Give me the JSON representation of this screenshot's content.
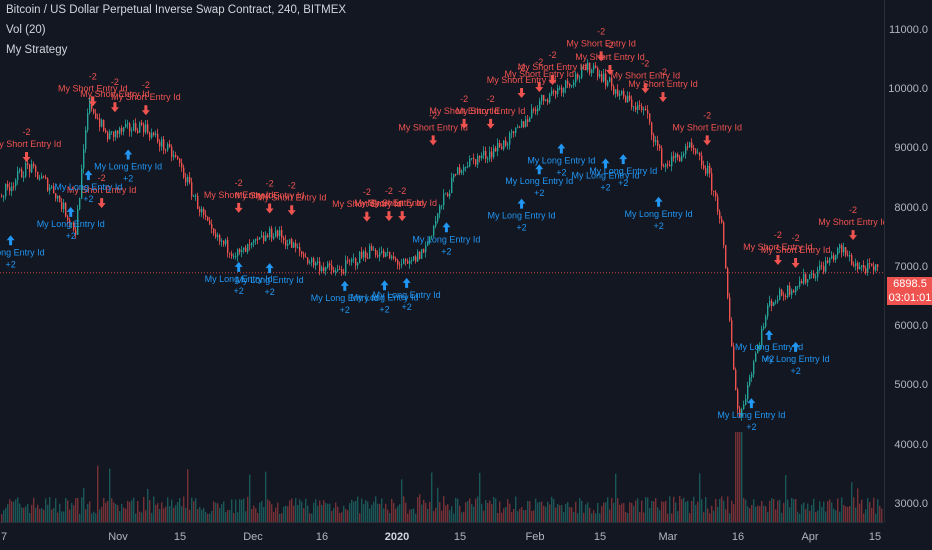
{
  "legend": {
    "title": "Bitcoin / US Dollar Perpetual Inverse Swap Contract, 240, BITMEX",
    "volume": "Vol (20)",
    "strategy": "My Strategy"
  },
  "price_axis": {
    "labels": [
      "11000.0",
      "10000.0",
      "9000.0",
      "8000.0",
      "7000.0",
      "6000.0",
      "5000.0",
      "4000.0",
      "3000.0"
    ],
    "current_price": "6898.5",
    "countdown": "03:01:01"
  },
  "time_axis": {
    "labels": [
      "7",
      "Nov",
      "15",
      "Dec",
      "16",
      "2020",
      "15",
      "Feb",
      "15",
      "Mar",
      "16",
      "Apr",
      "15"
    ]
  },
  "colors": {
    "up": "#26a69a",
    "down": "#ef5350",
    "long": "#2196f3",
    "background": "#131722"
  },
  "signals": {
    "short_label": "My Short Entry Id",
    "short_qty": "-2",
    "long_label": "My Long Entry Id",
    "long_qty": "+2",
    "short": [
      {
        "t": 0.03,
        "p": 8720
      },
      {
        "t": 0.115,
        "p": 7940
      },
      {
        "t": 0.105,
        "p": 9660
      },
      {
        "t": 0.13,
        "p": 9560
      },
      {
        "t": 0.165,
        "p": 9510
      },
      {
        "t": 0.27,
        "p": 7860
      },
      {
        "t": 0.305,
        "p": 7850
      },
      {
        "t": 0.33,
        "p": 7820
      },
      {
        "t": 0.415,
        "p": 7710
      },
      {
        "t": 0.44,
        "p": 7720
      },
      {
        "t": 0.455,
        "p": 7720
      },
      {
        "t": 0.49,
        "p": 9000
      },
      {
        "t": 0.525,
        "p": 9280
      },
      {
        "t": 0.555,
        "p": 9280
      },
      {
        "t": 0.59,
        "p": 9800
      },
      {
        "t": 0.61,
        "p": 9900
      },
      {
        "t": 0.625,
        "p": 10020
      },
      {
        "t": 0.68,
        "p": 10420
      },
      {
        "t": 0.69,
        "p": 10190
      },
      {
        "t": 0.73,
        "p": 9880
      },
      {
        "t": 0.75,
        "p": 9730
      },
      {
        "t": 0.8,
        "p": 9000
      },
      {
        "t": 0.88,
        "p": 6980
      },
      {
        "t": 0.9,
        "p": 6930
      },
      {
        "t": 0.965,
        "p": 7400
      }
    ],
    "long": [
      {
        "t": 0.012,
        "p": 7600
      },
      {
        "t": 0.08,
        "p": 8080
      },
      {
        "t": 0.1,
        "p": 8700
      },
      {
        "t": 0.145,
        "p": 9050
      },
      {
        "t": 0.27,
        "p": 7150
      },
      {
        "t": 0.305,
        "p": 7130
      },
      {
        "t": 0.39,
        "p": 6830
      },
      {
        "t": 0.435,
        "p": 6840
      },
      {
        "t": 0.46,
        "p": 6880
      },
      {
        "t": 0.505,
        "p": 7820
      },
      {
        "t": 0.59,
        "p": 8220
      },
      {
        "t": 0.61,
        "p": 8800
      },
      {
        "t": 0.635,
        "p": 9150
      },
      {
        "t": 0.685,
        "p": 8900
      },
      {
        "t": 0.705,
        "p": 8970
      },
      {
        "t": 0.745,
        "p": 8250
      },
      {
        "t": 0.85,
        "p": 4850
      },
      {
        "t": 0.87,
        "p": 6000
      },
      {
        "t": 0.9,
        "p": 5800
      }
    ]
  }
}
